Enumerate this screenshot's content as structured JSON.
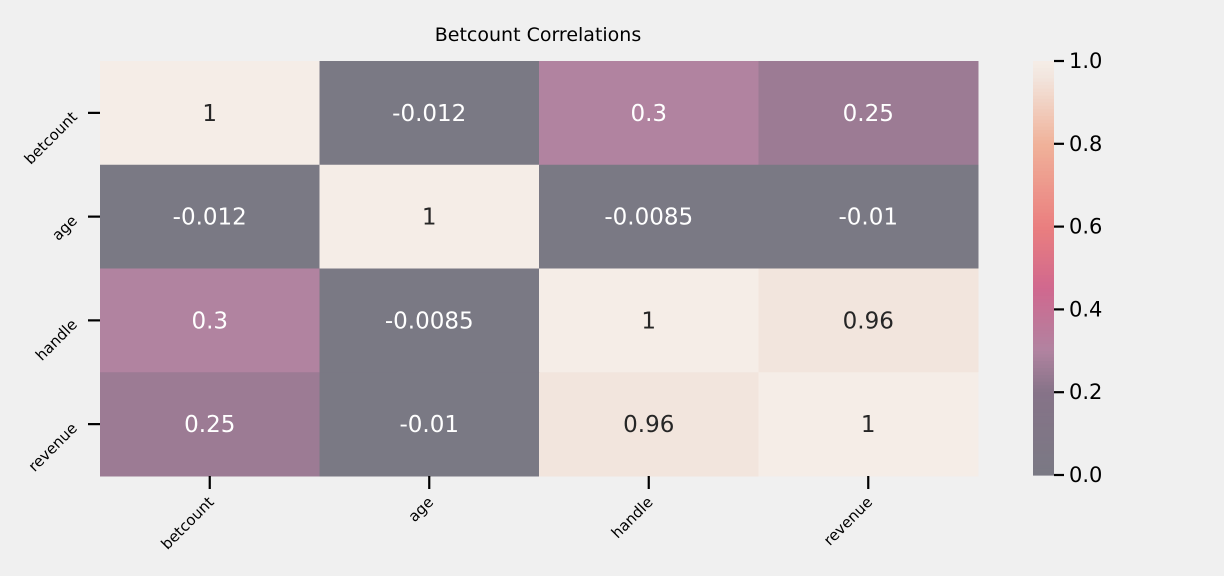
{
  "chart_data": {
    "type": "heatmap",
    "title": "Betcount Correlations",
    "x_categories": [
      "betcount",
      "age",
      "handle",
      "revenue"
    ],
    "y_categories": [
      "betcount",
      "age",
      "handle",
      "revenue"
    ],
    "values": [
      [
        1,
        -0.012,
        0.3,
        0.25
      ],
      [
        -0.012,
        1,
        -0.0085,
        -0.01
      ],
      [
        0.3,
        -0.0085,
        1,
        0.96
      ],
      [
        0.25,
        -0.01,
        0.96,
        1
      ]
    ],
    "annotations": [
      [
        "1",
        "-0.012",
        "0.3",
        "0.25"
      ],
      [
        "-0.012",
        "1",
        "-0.0085",
        "-0.01"
      ],
      [
        "0.3",
        "-0.0085",
        "1",
        "0.96"
      ],
      [
        "0.25",
        "-0.01",
        "0.96",
        "1"
      ]
    ],
    "colorbar": {
      "range": [
        0.0,
        1.0
      ],
      "ticks": [
        0.0,
        0.2,
        0.4,
        0.6,
        0.8,
        1.0
      ],
      "tick_labels": [
        "0.0",
        "0.2",
        "0.4",
        "0.6",
        "0.8",
        "1.0"
      ],
      "colormap": "rocket",
      "alpha": 0.5
    },
    "colors": {
      "background": "#f0f0f0",
      "low": "#7a7984",
      "high": "#f5ede7",
      "dark_text": "#262626",
      "light_text": "#ffffff"
    }
  }
}
